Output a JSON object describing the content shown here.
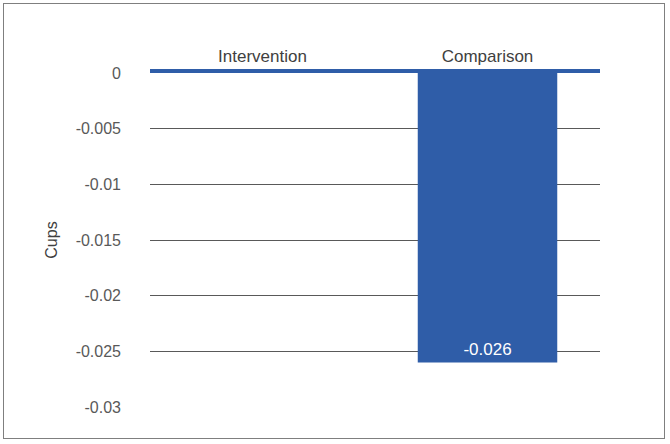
{
  "chart_data": {
    "type": "bar",
    "y_label": "Cups",
    "categories": [
      "Intervention",
      "Comparison"
    ],
    "values": [
      0,
      -0.026
    ],
    "data_labels": true,
    "value_labels": [
      null,
      "-0.026"
    ],
    "color": "#2f5da8",
    "ylim": [
      -0.03,
      0
    ],
    "yticks": [
      0,
      -0.005,
      -0.01,
      -0.015,
      -0.02,
      -0.025,
      -0.03
    ],
    "grid": true
  }
}
